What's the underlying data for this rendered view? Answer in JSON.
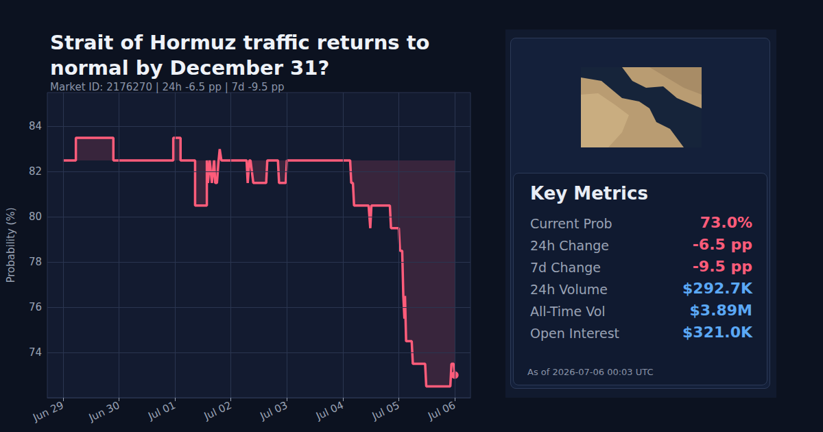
{
  "chart_data": {
    "type": "line",
    "title": "Strait of Hormuz traffic returns to normal by December 31?",
    "subtitle": "Market ID: 2176270 | 24h -6.5 pp | 7d -9.5 pp",
    "y_label": "Probability (%)",
    "color": "#ff5c7a",
    "grid": true,
    "x": [
      0,
      0.23,
      0.23,
      0.9,
      0.9,
      1.97,
      1.97,
      2.1,
      2.1,
      2.36,
      2.36,
      2.57,
      2.57,
      2.59,
      2.62,
      2.66,
      2.7,
      2.72,
      2.75,
      2.78,
      2.8,
      2.83,
      3.28,
      3.3,
      3.33,
      3.35,
      3.4,
      3.63,
      3.65,
      3.84,
      3.86,
      3.98,
      4.0,
      5.13,
      5.15,
      5.18,
      5.2,
      5.46,
      5.49,
      5.51,
      5.84,
      5.86,
      6.0,
      6.02,
      6.06,
      6.08,
      6.1,
      6.11,
      6.13,
      6.23,
      6.25,
      6.47,
      6.49,
      6.92,
      6.94,
      6.98,
      7.0
    ],
    "values": [
      82.5,
      82.5,
      83.5,
      83.5,
      82.5,
      82.5,
      83.5,
      83.5,
      82.5,
      82.5,
      80.5,
      80.5,
      82.5,
      81.5,
      82.5,
      81.5,
      82.5,
      81.5,
      81.5,
      82.5,
      83.0,
      82.5,
      82.5,
      81.5,
      82.5,
      82.5,
      81.5,
      81.5,
      82.5,
      82.5,
      81.5,
      81.5,
      82.5,
      82.5,
      81.5,
      81.5,
      80.5,
      80.5,
      79.5,
      80.5,
      80.5,
      79.5,
      79.5,
      78.5,
      78.5,
      76.5,
      75.5,
      76.5,
      74.5,
      74.5,
      73.5,
      73.5,
      72.5,
      72.5,
      73.5,
      73.5,
      73.0
    ],
    "xlim": [
      -0.28,
      7.28
    ],
    "xticks": [
      {
        "value": 0,
        "label": "Jun 29"
      },
      {
        "value": 1,
        "label": "Jun 30"
      },
      {
        "value": 2,
        "label": "Jul 01"
      },
      {
        "value": 3,
        "label": "Jul 02"
      },
      {
        "value": 4,
        "label": "Jul 03"
      },
      {
        "value": 5,
        "label": "Jul 04"
      },
      {
        "value": 6,
        "label": "Jul 05"
      },
      {
        "value": 7,
        "label": "Jul 06"
      }
    ],
    "ylim": [
      72,
      85.5
    ],
    "yticks": [
      74,
      76,
      78,
      80,
      82,
      84
    ]
  },
  "panel": {
    "title": "Key Metrics",
    "metrics": [
      {
        "label": "Current Prob",
        "value": "73.0%",
        "color": "#ff5c7a"
      },
      {
        "label": "24h Change",
        "value": "-6.5 pp",
        "color": "#ff5c7a"
      },
      {
        "label": "7d Change",
        "value": "-9.5 pp",
        "color": "#ff5c7a"
      },
      {
        "label": "24h Volume",
        "value": "$292.7K",
        "color": "#5ba8f5"
      },
      {
        "label": "All-Time Vol",
        "value": "$3.89M",
        "color": "#5ba8f5"
      },
      {
        "label": "Open Interest",
        "value": "$321.0K",
        "color": "#5ba8f5"
      }
    ],
    "timestamp": "As of 2026-07-06 00:03 UTC"
  }
}
